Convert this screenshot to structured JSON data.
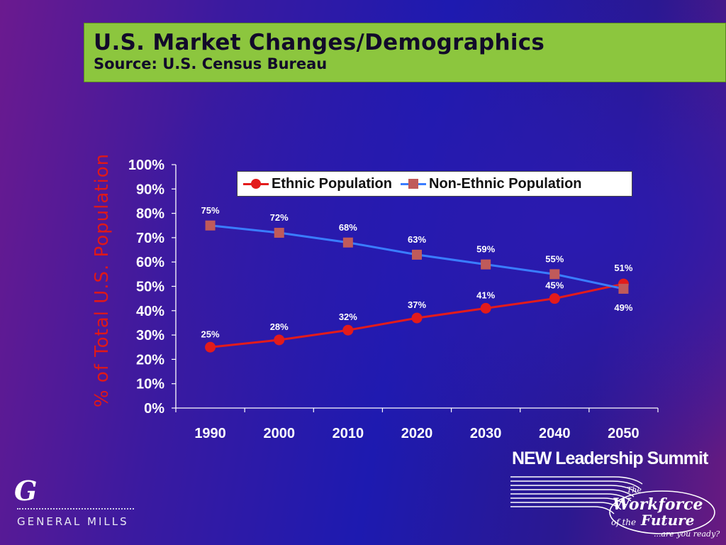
{
  "header": {
    "title": "U.S. Market Changes/Demographics",
    "subtitle": "Source: U.S. Census Bureau"
  },
  "chart_data": {
    "type": "line",
    "ylabel": "% of Total U.S. Population",
    "xlabel": "",
    "categories": [
      "1990",
      "2000",
      "2010",
      "2020",
      "2030",
      "2040",
      "2050"
    ],
    "ylim": [
      0,
      100
    ],
    "yticks": [
      "0%",
      "10%",
      "20%",
      "30%",
      "40%",
      "50%",
      "60%",
      "70%",
      "80%",
      "90%",
      "100%"
    ],
    "legend_position": "top-right",
    "grid": false,
    "series": [
      {
        "name": "Ethnic Population",
        "values": [
          25,
          28,
          32,
          37,
          41,
          45,
          51
        ],
        "labels": [
          "25%",
          "28%",
          "32%",
          "37%",
          "41%",
          "45%",
          "51%"
        ],
        "color": "#e31b1b",
        "marker": "circle"
      },
      {
        "name": "Non-Ethnic Population",
        "values": [
          75,
          72,
          68,
          63,
          59,
          55,
          49
        ],
        "labels": [
          "75%",
          "72%",
          "68%",
          "63%",
          "59%",
          "55%",
          "49%"
        ],
        "color": "#c05a5a",
        "line_color": "#3a7dff",
        "marker": "square"
      }
    ]
  },
  "logos": {
    "left_monogram": "G",
    "left_text": "GENERAL MILLS",
    "right_title": "NEW Leadership Summit",
    "right_tagline": "The Workforce of the Future",
    "right_question": "...are you ready?"
  },
  "colors": {
    "title_box": "#8cc63e",
    "ylabel": "#e01818",
    "axis": "#ffffff"
  }
}
